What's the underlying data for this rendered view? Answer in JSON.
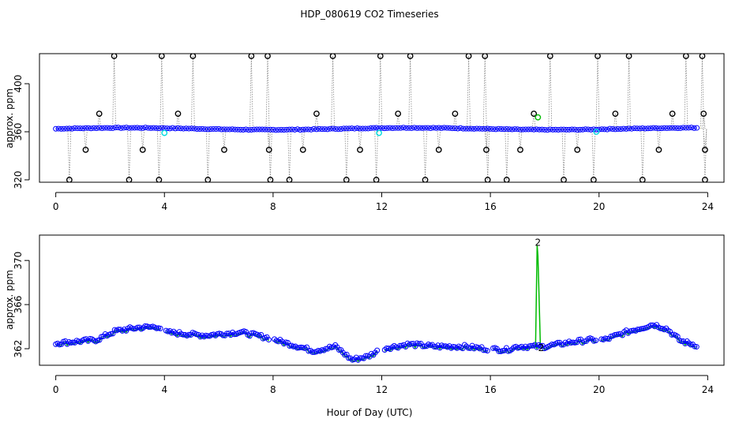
{
  "title": "HDP_080619  CO2 Timeseries",
  "xlabel": "Hour of Day (UTC)",
  "colors": {
    "raw": "#000000",
    "series1": "#0000ff",
    "series2": "#00bb00",
    "outlier": "#00dddd",
    "line": "#888888"
  },
  "chart_data": [
    {
      "type": "scatter",
      "panel": "top",
      "ylabel": "approx. ppm",
      "xlim": [
        -0.6,
        24.6
      ],
      "ylim": [
        318,
        425
      ],
      "xticks": [
        0,
        4,
        8,
        12,
        16,
        20,
        24
      ],
      "yticks": [
        320,
        360,
        400
      ],
      "baseline": 362.5,
      "spikes_high": [
        2.15,
        3.9,
        5.05,
        7.2,
        7.8,
        10.2,
        11.95,
        13.05,
        15.2,
        15.8,
        18.2,
        19.95,
        21.1,
        23.2,
        23.8
      ],
      "spikes_low": [
        0.5,
        2.7,
        3.8,
        5.6,
        7.9,
        8.6,
        10.7,
        11.8,
        13.6,
        15.9,
        16.6,
        18.7,
        19.8,
        21.6,
        23.9
      ],
      "spikes_mid": [
        1.6,
        4.5,
        9.6,
        12.6,
        14.7,
        17.6,
        20.6,
        22.7,
        23.85
      ],
      "spikes_345": [
        1.1,
        3.2,
        6.2,
        7.85,
        9.1,
        11.2,
        14.1,
        15.85,
        17.1,
        19.2,
        22.2,
        23.9
      ],
      "cyan_points": [
        [
          4.0,
          359
        ],
        [
          11.9,
          359
        ],
        [
          19.9,
          360
        ]
      ],
      "green_points": [
        [
          17.75,
          372
        ]
      ]
    },
    {
      "type": "scatter",
      "panel": "bottom",
      "ylabel": "approx. ppm",
      "xlim": [
        -0.6,
        24.6
      ],
      "ylim": [
        360.5,
        372.3
      ],
      "xticks": [
        0,
        4,
        8,
        12,
        16,
        20,
        24
      ],
      "yticks": [
        362,
        366,
        370
      ],
      "labels": [
        "2"
      ],
      "series_keypoints": [
        [
          0,
          362.5
        ],
        [
          1.5,
          362.8
        ],
        [
          2.2,
          363.6
        ],
        [
          3.0,
          363.9
        ],
        [
          3.8,
          364.0
        ],
        [
          4.0,
          363.5
        ],
        [
          5.5,
          363.2
        ],
        [
          6.8,
          363.5
        ],
        [
          7.8,
          363.0
        ],
        [
          8.5,
          362.5
        ],
        [
          9.5,
          361.8
        ],
        [
          10.3,
          362.2
        ],
        [
          10.9,
          361.0
        ],
        [
          11.5,
          361.3
        ],
        [
          12.0,
          362.0
        ],
        [
          13.0,
          362.4
        ],
        [
          14.0,
          362.2
        ],
        [
          15.0,
          362.2
        ],
        [
          15.8,
          362.0
        ],
        [
          16.6,
          361.9
        ],
        [
          17.0,
          362.2
        ],
        [
          18.0,
          362.2
        ],
        [
          19.0,
          362.6
        ],
        [
          19.7,
          362.8
        ],
        [
          20.2,
          362.8
        ],
        [
          21.0,
          363.5
        ],
        [
          22.0,
          364.2
        ],
        [
          22.5,
          363.8
        ],
        [
          23.0,
          362.7
        ],
        [
          23.6,
          362.3
        ]
      ],
      "gaps": [
        [
          3.9,
          4.0
        ],
        [
          7.85,
          8.0
        ],
        [
          11.9,
          12.05
        ],
        [
          15.9,
          16.05
        ],
        [
          19.9,
          20.05
        ]
      ],
      "spike": {
        "x": 17.75,
        "base": 362.2,
        "peak": 371.4
      }
    }
  ]
}
